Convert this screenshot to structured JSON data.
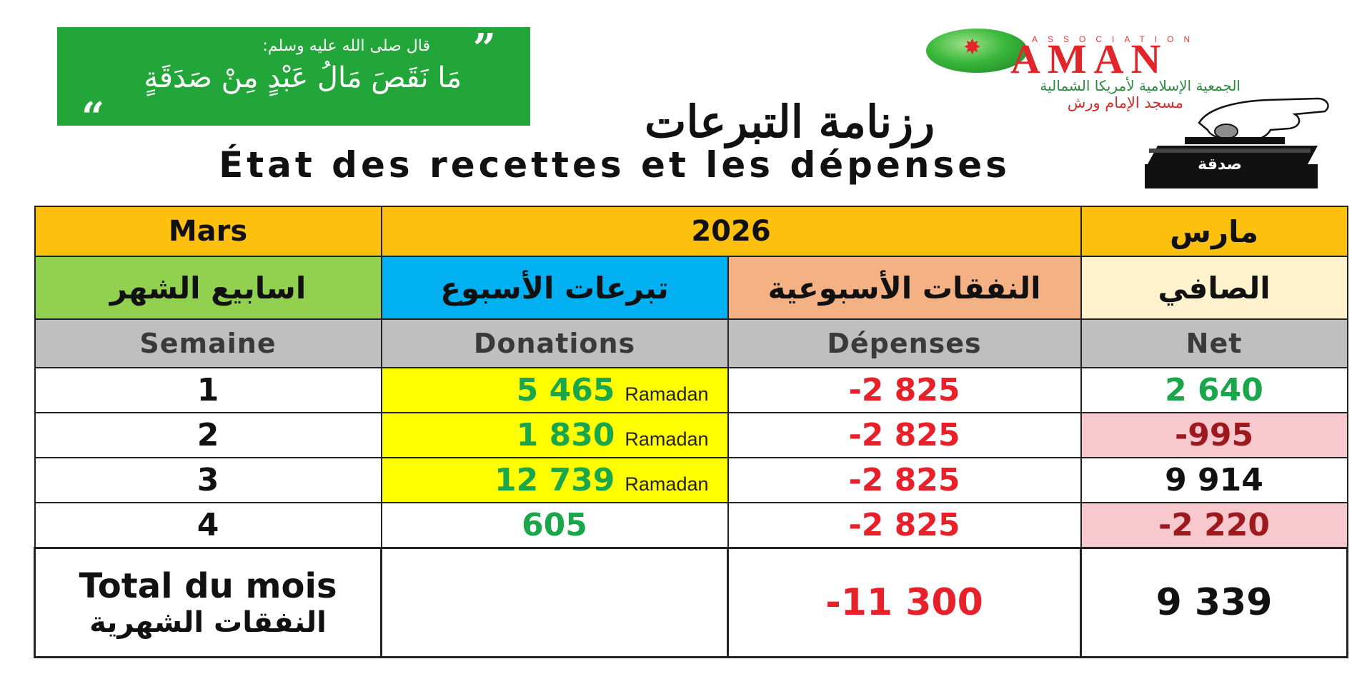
{
  "quote": {
    "intro": "قال صلى الله عليه وسلم:",
    "text": "مَا نَقَصَ مَالُ عَبْدٍ مِنْ صَدَقَةٍ"
  },
  "logo": {
    "association": "ASSOCIATION",
    "name": "AMAN",
    "org_ar": "الجمعية الإسلامية لأمريكا الشمالية",
    "mosque_ar": "مسجد الإمام ورش"
  },
  "donation_box_label": "صدقة",
  "title_ar": "رزنامة التبرعات",
  "title_fr": "État des recettes et les dépenses",
  "table": {
    "month_fr": "Mars",
    "year": "2026",
    "month_ar": "مارس",
    "headers_ar": {
      "weeks": "اسابيع الشهر",
      "donations": "تبرعات الأسبوع",
      "expenses": "النفقات الأسبوعية",
      "net": "الصافي"
    },
    "headers_fr": {
      "week": "Semaine",
      "donations": "Donations",
      "expenses": "Dépenses",
      "net": "Net"
    },
    "rows": [
      {
        "week": "1",
        "donation": "5 465",
        "tag": "Ramadan",
        "expense": "-2 825",
        "net": "2 640"
      },
      {
        "week": "2",
        "donation": "1 830",
        "tag": "Ramadan",
        "expense": "-2 825",
        "net": "-995"
      },
      {
        "week": "3",
        "donation": "12 739",
        "tag": "Ramadan",
        "expense": "-2 825",
        "net": "9 914"
      },
      {
        "week": "4",
        "donation": "605",
        "tag": "",
        "expense": "-2 825",
        "net": "-2 220"
      }
    ],
    "total": {
      "label_fr": "Total du mois",
      "label_ar": "النفقات الشهرية",
      "donations": "",
      "expenses": "-11 300",
      "net": "9 339"
    }
  },
  "colors": {
    "quote_green": "#22a63a",
    "month_bar": "#fdc00f",
    "weeks_header": "#92d050",
    "donations_header": "#00b0f0",
    "expenses_header": "#f4b183",
    "net_header": "#fff2cc",
    "highlight_yellow": "#ffff00",
    "negative_pink": "#f8c8cf",
    "positive_green": "#1aa64b",
    "expense_red": "#e8202a"
  }
}
